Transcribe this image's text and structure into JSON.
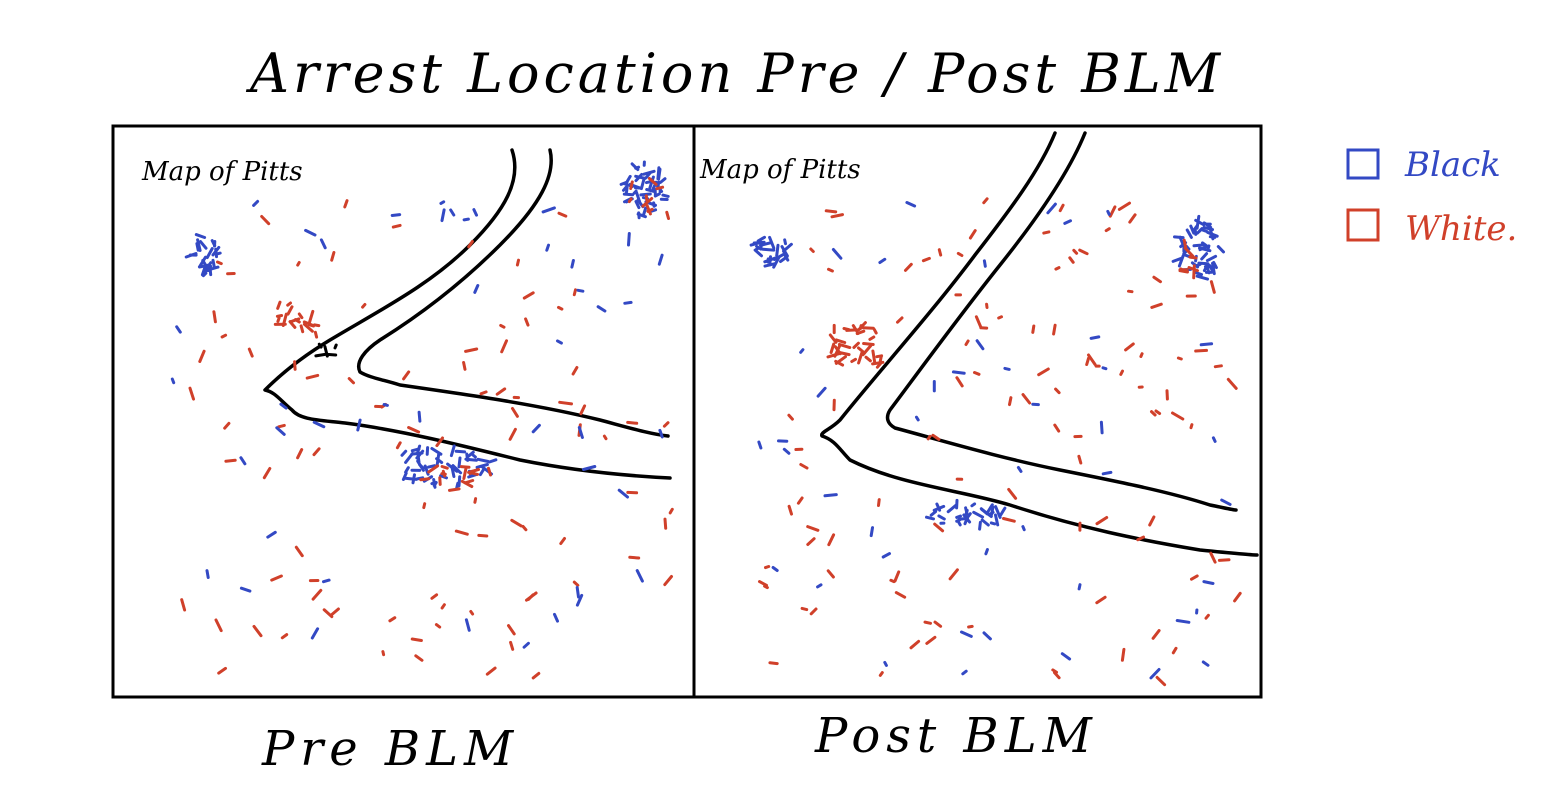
{
  "title": "Arrest Location Pre / Post BLM",
  "colors": {
    "black": "#3349c4",
    "white": "#d0402a",
    "ink": "#000000"
  },
  "legend": [
    {
      "key": "black",
      "label": "Black",
      "color": "#3349c4"
    },
    {
      "key": "white",
      "label": "White.",
      "color": "#d0402a"
    }
  ],
  "panels": [
    {
      "id": "pre",
      "map_label": "Map of Pitts",
      "caption": "Pre BLM"
    },
    {
      "id": "post",
      "map_label": "Map of Pitts",
      "caption": "Post BLM"
    }
  ]
}
